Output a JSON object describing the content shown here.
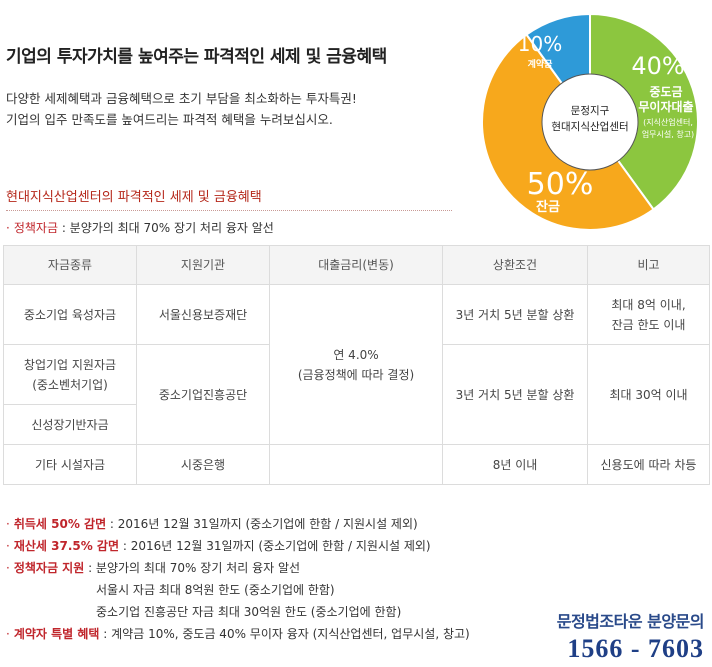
{
  "header": {
    "headline": "기업의 투자가치를 높여주는 파격적인 세제 및 금융혜택",
    "intro_lines": [
      "다양한 세제혜택과 금융혜택으로 초기 부담을 최소화하는 투자특권!",
      "기업의 입주 만족도를 높여드리는 파격적 혜택을 누려보십시오."
    ]
  },
  "chart_data": {
    "type": "pie",
    "center_label_lines": [
      "문정지구",
      "현대지식산업센터"
    ],
    "slices": [
      {
        "percent": "40%",
        "value": 40,
        "label_lines": [
          "중도금",
          "무이자대출"
        ],
        "sub_lines": [
          "(지식산업센터,",
          "업무시설, 창고)"
        ],
        "color": "#8cc63f"
      },
      {
        "percent": "50%",
        "value": 50,
        "label_lines": [
          "잔금"
        ],
        "sub_lines": [],
        "color": "#f7a81c"
      },
      {
        "percent": "10%",
        "value": 10,
        "label_lines": [
          "계약금"
        ],
        "sub_lines": [],
        "color": "#2e9ad8"
      }
    ]
  },
  "section": {
    "title": "현대지식산업센터의 파격적인 세제 및 금융혜택",
    "policy_label": "정책자금",
    "policy_text": " : 분양가의 최대 70% 장기 처리 융자 알선"
  },
  "table": {
    "headers": [
      "자금종류",
      "지원기관",
      "대출금리(변동)",
      "상환조건",
      "비고"
    ],
    "r1": {
      "c1": "중소기업 육성자금",
      "c2": "서울신용보증재단",
      "c4": "3년 거치 5년 분할 상환",
      "c5": [
        "최대 8억 이내,",
        "잔금 한도 이내"
      ]
    },
    "rate": [
      "연 4.0%",
      "(금융정책에 따라 결정)"
    ],
    "r2": {
      "c1": [
        "창업기업 지원자금",
        "(중소벤처기업)"
      ],
      "c2": "중소기업진흥공단",
      "c4": "3년 거치 5년 분할 상환",
      "c5": "최대 30억 이내"
    },
    "r3": {
      "c1": "신성장기반자금"
    },
    "r4": {
      "c1": "기타 시설자금",
      "c2": "시중은행",
      "c4": "8년 이내",
      "c5": "신용도에 따라 차등"
    }
  },
  "bottom_notes": {
    "n1_label": "취득세 50% 감면",
    "n1_text": " : 2016년 12월 31일까지 (중소기업에 한함 / 지원시설 제외)",
    "n2_label": "재산세 37.5% 감면",
    "n2_text": " : 2016년 12월 31일까지 (중소기업에 한함 / 지원시설 제외)",
    "n3_label": "정책자금 지원",
    "n3_text": " : 분양가의 최대 70% 장기 처리 융자 알선",
    "n3_sub1": "서울시 자금 최대 8억원 한도 (중소기업에 한함)",
    "n3_sub2": "중소기업 진흥공단 자금 최대 30억원 한도 (중소기업에 한함)",
    "n4_label": "계약자 특별 혜택",
    "n4_text": " : 계약금 10%, 중도금 40% 무이자 융자 (지식산업센터, 업무시설, 창고)"
  },
  "contact": {
    "label": "문정법조타운 분양문의",
    "phone": "1566 - 7603"
  },
  "bullet": "·"
}
